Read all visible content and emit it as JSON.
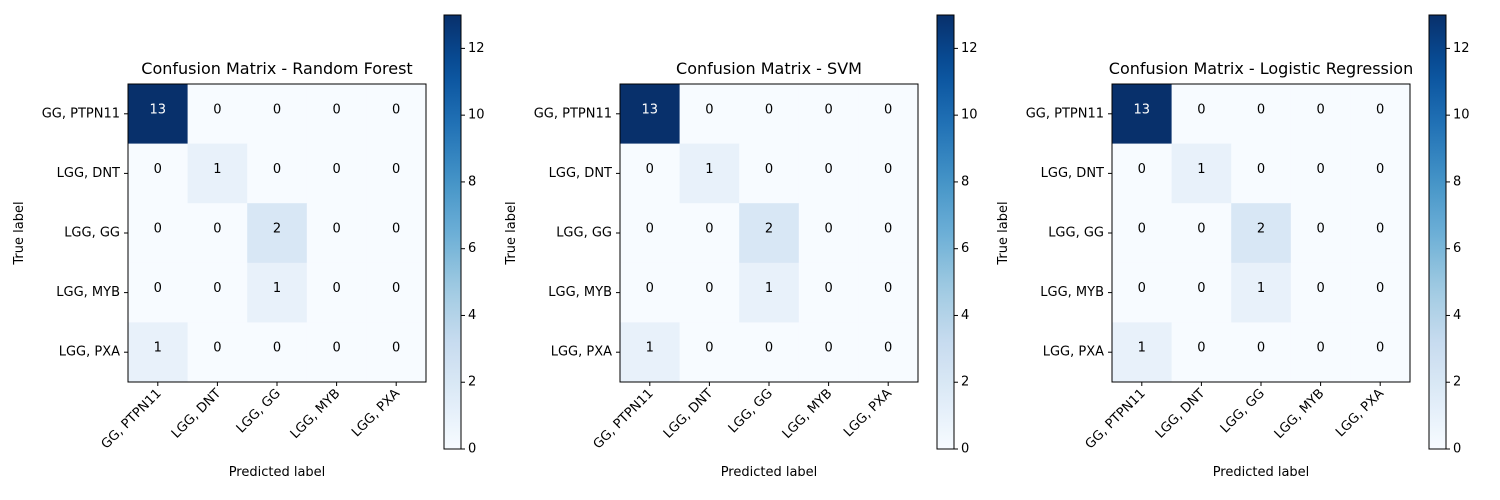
{
  "chart_data": [
    {
      "type": "heatmap",
      "title": "Confusion Matrix - Random Forest",
      "xlabel": "Predicted label",
      "ylabel": "True label",
      "x_categories": [
        "GG, PTPN11",
        "LGG, DNT",
        "LGG, GG",
        "LGG, MYB",
        "LGG, PXA"
      ],
      "y_categories": [
        "GG, PTPN11",
        "LGG, DNT",
        "LGG, GG",
        "LGG, MYB",
        "LGG, PXA"
      ],
      "matrix": [
        [
          13,
          0,
          0,
          0,
          0
        ],
        [
          0,
          1,
          0,
          0,
          0
        ],
        [
          0,
          0,
          2,
          0,
          0
        ],
        [
          0,
          0,
          1,
          0,
          0
        ],
        [
          1,
          0,
          0,
          0,
          0
        ]
      ],
      "colorbar": {
        "min": 0,
        "max": 13,
        "ticks": [
          0,
          2,
          4,
          6,
          8,
          10,
          12
        ]
      },
      "colormap": "Blues"
    },
    {
      "type": "heatmap",
      "title": "Confusion Matrix - SVM",
      "xlabel": "Predicted label",
      "ylabel": "True label",
      "x_categories": [
        "GG, PTPN11",
        "LGG, DNT",
        "LGG, GG",
        "LGG, MYB",
        "LGG, PXA"
      ],
      "y_categories": [
        "GG, PTPN11",
        "LGG, DNT",
        "LGG, GG",
        "LGG, MYB",
        "LGG, PXA"
      ],
      "matrix": [
        [
          13,
          0,
          0,
          0,
          0
        ],
        [
          0,
          1,
          0,
          0,
          0
        ],
        [
          0,
          0,
          2,
          0,
          0
        ],
        [
          0,
          0,
          1,
          0,
          0
        ],
        [
          1,
          0,
          0,
          0,
          0
        ]
      ],
      "colorbar": {
        "min": 0,
        "max": 13,
        "ticks": [
          0,
          2,
          4,
          6,
          8,
          10,
          12
        ]
      },
      "colormap": "Blues"
    },
    {
      "type": "heatmap",
      "title": "Confusion Matrix - Logistic Regression",
      "xlabel": "Predicted label",
      "ylabel": "True label",
      "x_categories": [
        "GG, PTPN11",
        "LGG, DNT",
        "LGG, GG",
        "LGG, MYB",
        "LGG, PXA"
      ],
      "y_categories": [
        "GG, PTPN11",
        "LGG, DNT",
        "LGG, GG",
        "LGG, MYB",
        "LGG, PXA"
      ],
      "matrix": [
        [
          13,
          0,
          0,
          0,
          0
        ],
        [
          0,
          1,
          0,
          0,
          0
        ],
        [
          0,
          0,
          2,
          0,
          0
        ],
        [
          0,
          0,
          1,
          0,
          0
        ],
        [
          1,
          0,
          0,
          0,
          0
        ]
      ],
      "colorbar": {
        "min": 0,
        "max": 13,
        "ticks": [
          0,
          2,
          4,
          6,
          8,
          10,
          12
        ]
      },
      "colormap": "Blues"
    }
  ]
}
